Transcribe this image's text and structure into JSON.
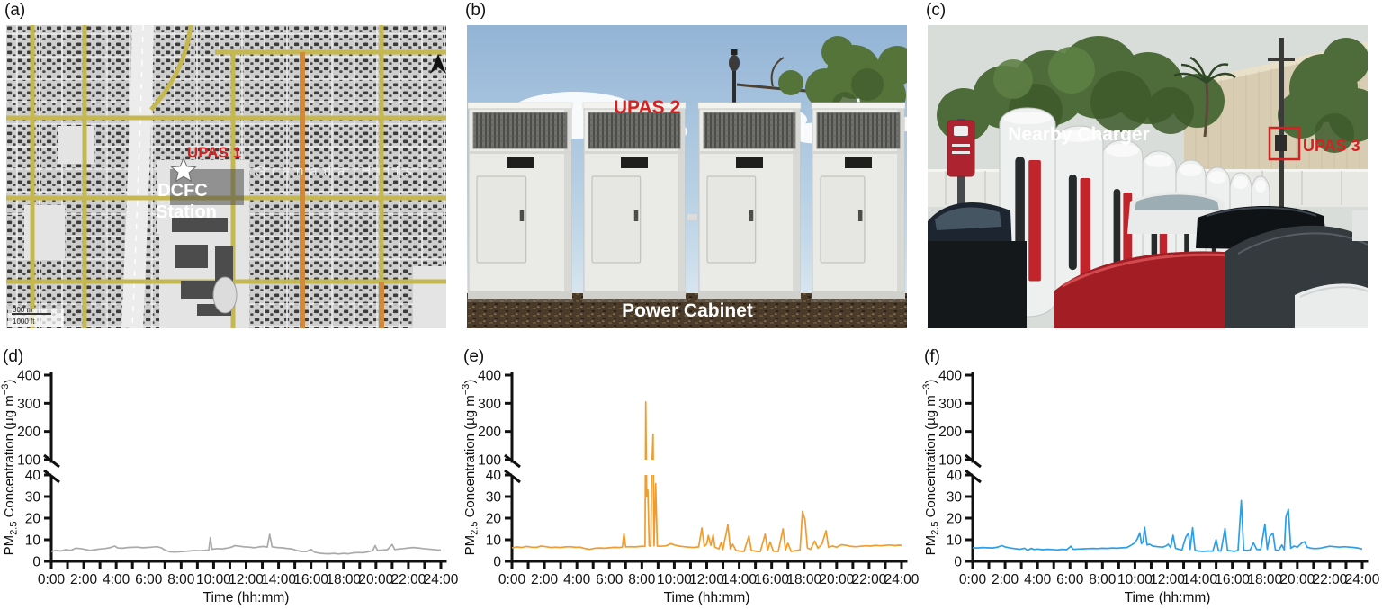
{
  "colors": {
    "annotation_red": "#D42222",
    "series_gray": "#AAAAAA",
    "series_orange": "#EF9D30",
    "series_blue": "#2D9FE8",
    "axis_black": "#111111"
  },
  "panels": {
    "a": {
      "label": "(a)",
      "annotations": {
        "upas": "UPAS 1",
        "station_line1": "DCFC",
        "station_line2": "Station",
        "area_name": "Granada Hills",
        "scale_metric": "300 m",
        "scale_imperial": "1000 ft"
      }
    },
    "b": {
      "label": "(b)",
      "annotations": {
        "upas": "UPAS 2",
        "caption": "Power Cabinet"
      }
    },
    "c": {
      "label": "(c)",
      "annotations": {
        "upas": "UPAS 3",
        "caption": "Nearby Charger"
      }
    }
  },
  "charts": {
    "axes": {
      "x": {
        "label": "Time (hh:mm)",
        "min": 0,
        "max": 24,
        "tick_step_hours": 1,
        "label_step_hours": 2,
        "tick_labels": [
          "0:00",
          "2:00",
          "4:00",
          "6:00",
          "8:00",
          "10:00",
          "12:00",
          "14:00",
          "16:00",
          "18:00",
          "20:00",
          "22:00",
          "24:00"
        ]
      },
      "y": {
        "label_parts": {
          "p1": "PM",
          "sub": "2.5",
          "p2": " Concentration (µg m",
          "sup": "−3",
          "p3": ")"
        },
        "lower": {
          "min": 0,
          "max": 40,
          "ticks": [
            0,
            10,
            20,
            30,
            40
          ]
        },
        "upper": {
          "min": 100,
          "max": 400,
          "ticks": [
            100,
            200,
            300,
            400
          ]
        },
        "broken": true
      }
    }
  },
  "chart_data": [
    {
      "panel_label": "(d)",
      "type": "line",
      "color": "#AAAAAA",
      "x_unit": "hours",
      "points": [
        [
          0,
          4.6
        ],
        [
          0.3,
          5.1
        ],
        [
          0.6,
          4.8
        ],
        [
          0.9,
          5.4
        ],
        [
          1.2,
          5.1
        ],
        [
          1.5,
          6.1
        ],
        [
          1.8,
          5.9
        ],
        [
          2.1,
          5.5
        ],
        [
          2.4,
          5.1
        ],
        [
          2.7,
          5.4
        ],
        [
          3,
          5.7
        ],
        [
          3.3,
          5.9
        ],
        [
          3.6,
          6.3
        ],
        [
          3.9,
          7.1
        ],
        [
          4.1,
          6.2
        ],
        [
          4.4,
          6.1
        ],
        [
          4.7,
          6.4
        ],
        [
          5,
          6.5
        ],
        [
          5.3,
          6.6
        ],
        [
          5.6,
          6.3
        ],
        [
          5.9,
          6.4
        ],
        [
          6.2,
          6.6
        ],
        [
          6.5,
          6.8
        ],
        [
          6.8,
          6.2
        ],
        [
          7,
          5.2
        ],
        [
          7.3,
          4.4
        ],
        [
          7.6,
          4.3
        ],
        [
          7.9,
          4.4
        ],
        [
          8.2,
          4.6
        ],
        [
          8.5,
          4.8
        ],
        [
          8.8,
          5
        ],
        [
          9.1,
          4.9
        ],
        [
          9.4,
          5.1
        ],
        [
          9.7,
          5.2
        ],
        [
          9.8,
          11
        ],
        [
          9.9,
          5.6
        ],
        [
          10.2,
          5.9
        ],
        [
          10.5,
          5.8
        ],
        [
          10.8,
          6.1
        ],
        [
          11.1,
          6.6
        ],
        [
          11.3,
          7.3
        ],
        [
          11.6,
          7
        ],
        [
          11.9,
          6.7
        ],
        [
          12.2,
          6.6
        ],
        [
          12.5,
          6.3
        ],
        [
          12.8,
          6.7
        ],
        [
          13.1,
          6.9
        ],
        [
          13.3,
          6.6
        ],
        [
          13.45,
          12.5
        ],
        [
          13.6,
          6.7
        ],
        [
          13.9,
          6.4
        ],
        [
          14.2,
          6.3
        ],
        [
          14.5,
          6
        ],
        [
          14.8,
          5.8
        ],
        [
          15.1,
          5.1
        ],
        [
          15.4,
          4.6
        ],
        [
          15.7,
          4.5
        ],
        [
          16,
          5.6
        ],
        [
          16.2,
          4.3
        ],
        [
          16.5,
          3.8
        ],
        [
          16.8,
          3.6
        ],
        [
          17.1,
          3.5
        ],
        [
          17.4,
          3.7
        ],
        [
          17.7,
          3.4
        ],
        [
          18,
          3.7
        ],
        [
          18.3,
          3.5
        ],
        [
          18.6,
          3.9
        ],
        [
          18.9,
          4.1
        ],
        [
          19.2,
          4
        ],
        [
          19.5,
          4.4
        ],
        [
          19.8,
          4.9
        ],
        [
          19.95,
          7.3
        ],
        [
          20.1,
          5.1
        ],
        [
          20.4,
          5.2
        ],
        [
          20.7,
          5.4
        ],
        [
          21,
          7.8
        ],
        [
          21.15,
          5.5
        ],
        [
          21.4,
          5.7
        ],
        [
          21.7,
          5.9
        ],
        [
          22,
          6.2
        ],
        [
          22.3,
          6.4
        ],
        [
          22.6,
          6.2
        ],
        [
          22.9,
          5.9
        ],
        [
          23.2,
          5.7
        ],
        [
          23.5,
          5.5
        ],
        [
          23.8,
          5.3
        ],
        [
          24,
          5.2
        ]
      ]
    },
    {
      "panel_label": "(e)",
      "type": "line",
      "color": "#EF9D30",
      "x_unit": "hours",
      "points": [
        [
          0,
          6.3
        ],
        [
          0.3,
          6.7
        ],
        [
          0.6,
          6.4
        ],
        [
          0.9,
          6.9
        ],
        [
          1.2,
          6.6
        ],
        [
          1.5,
          6.5
        ],
        [
          1.8,
          7.1
        ],
        [
          2.1,
          6.8
        ],
        [
          2.4,
          6.4
        ],
        [
          2.7,
          6.6
        ],
        [
          3,
          6.4
        ],
        [
          3.3,
          6.7
        ],
        [
          3.6,
          6.8
        ],
        [
          3.9,
          6.5
        ],
        [
          4.2,
          6.6
        ],
        [
          4.5,
          5.9
        ],
        [
          4.8,
          5.6
        ],
        [
          5.1,
          6.1
        ],
        [
          5.4,
          6.2
        ],
        [
          5.7,
          6.1
        ],
        [
          6,
          6.3
        ],
        [
          6.3,
          6.5
        ],
        [
          6.6,
          6.4
        ],
        [
          6.8,
          6.6
        ],
        [
          6.9,
          12.9
        ],
        [
          7,
          6.7
        ],
        [
          7.3,
          6.8
        ],
        [
          7.6,
          6.7
        ],
        [
          7.9,
          6.9
        ],
        [
          8.1,
          7
        ],
        [
          8.2,
          6.9
        ],
        [
          8.24,
          305
        ],
        [
          8.3,
          30
        ],
        [
          8.37,
          33
        ],
        [
          8.45,
          7.2
        ],
        [
          8.55,
          7
        ],
        [
          8.6,
          40
        ],
        [
          8.69,
          190
        ],
        [
          8.75,
          7.2
        ],
        [
          8.85,
          36
        ],
        [
          8.95,
          7.1
        ],
        [
          9.2,
          7
        ],
        [
          9.5,
          7.2
        ],
        [
          9.8,
          8.2
        ],
        [
          10,
          7.6
        ],
        [
          10.3,
          7.1
        ],
        [
          10.6,
          6.8
        ],
        [
          10.9,
          6.6
        ],
        [
          11.2,
          6.4
        ],
        [
          11.5,
          6.7
        ],
        [
          11.7,
          15.4
        ],
        [
          11.85,
          7
        ],
        [
          12,
          8
        ],
        [
          12.1,
          12
        ],
        [
          12.25,
          7.4
        ],
        [
          12.4,
          12.3
        ],
        [
          12.5,
          6.6
        ],
        [
          12.75,
          5.8
        ],
        [
          12.9,
          8.8
        ],
        [
          13,
          5.4
        ],
        [
          13.1,
          9.4
        ],
        [
          13.2,
          12.8
        ],
        [
          13.3,
          17
        ],
        [
          13.45,
          5.8
        ],
        [
          13.6,
          7.9
        ],
        [
          13.8,
          5.1
        ],
        [
          14,
          4.8
        ],
        [
          14.3,
          4.6
        ],
        [
          14.6,
          11.8
        ],
        [
          14.75,
          5
        ],
        [
          14.9,
          4.9
        ],
        [
          15.1,
          4.6
        ],
        [
          15.3,
          4.5
        ],
        [
          15.6,
          12.6
        ],
        [
          15.75,
          5.1
        ],
        [
          15.9,
          8.9
        ],
        [
          16.1,
          4.7
        ],
        [
          16.4,
          4.5
        ],
        [
          16.7,
          15.1
        ],
        [
          16.85,
          5.2
        ],
        [
          17,
          8.4
        ],
        [
          17.2,
          4.6
        ],
        [
          17.5,
          5
        ],
        [
          17.75,
          5.3
        ],
        [
          17.9,
          23.2
        ],
        [
          18.05,
          19.3
        ],
        [
          18.2,
          6.2
        ],
        [
          18.4,
          5.6
        ],
        [
          18.65,
          9.4
        ],
        [
          18.85,
          6.1
        ],
        [
          19.1,
          8.1
        ],
        [
          19.35,
          14.2
        ],
        [
          19.5,
          6.6
        ],
        [
          19.75,
          7.1
        ],
        [
          20,
          6.6
        ],
        [
          20.3,
          7.7
        ],
        [
          20.6,
          7.4
        ],
        [
          20.9,
          6.9
        ],
        [
          21.2,
          6.8
        ],
        [
          21.5,
          7
        ],
        [
          21.8,
          7.2
        ],
        [
          22.1,
          7.1
        ],
        [
          22.4,
          7.4
        ],
        [
          22.7,
          7.2
        ],
        [
          23,
          7.4
        ],
        [
          23.3,
          7.6
        ],
        [
          23.6,
          7.3
        ],
        [
          23.8,
          7.5
        ],
        [
          24,
          7.4
        ]
      ]
    },
    {
      "panel_label": "(f)",
      "type": "line",
      "color": "#2D9FE8",
      "x_unit": "hours",
      "points": [
        [
          0,
          6.3
        ],
        [
          0.3,
          6.2
        ],
        [
          0.6,
          6.4
        ],
        [
          0.9,
          6.3
        ],
        [
          1.2,
          6.2
        ],
        [
          1.5,
          6.5
        ],
        [
          1.8,
          7.3
        ],
        [
          2,
          6.7
        ],
        [
          2.3,
          6.2
        ],
        [
          2.6,
          5.9
        ],
        [
          2.9,
          5.6
        ],
        [
          3.2,
          6.1
        ],
        [
          3.4,
          5.1
        ],
        [
          3.6,
          6
        ],
        [
          3.8,
          5.5
        ],
        [
          4,
          5.7
        ],
        [
          4.3,
          5.4
        ],
        [
          4.6,
          5.6
        ],
        [
          4.9,
          5.5
        ],
        [
          5.2,
          5.3
        ],
        [
          5.5,
          5.6
        ],
        [
          5.8,
          5.4
        ],
        [
          6.05,
          7
        ],
        [
          6.2,
          5.6
        ],
        [
          6.5,
          5.7
        ],
        [
          6.8,
          5.8
        ],
        [
          7.1,
          5.9
        ],
        [
          7.4,
          6
        ],
        [
          7.7,
          5.9
        ],
        [
          8,
          6.1
        ],
        [
          8.3,
          6
        ],
        [
          8.6,
          6.2
        ],
        [
          8.9,
          6.1
        ],
        [
          9.2,
          6.3
        ],
        [
          9.5,
          6.4
        ],
        [
          9.75,
          7.4
        ],
        [
          10,
          8.6
        ],
        [
          10.15,
          10.4
        ],
        [
          10.3,
          13.2
        ],
        [
          10.4,
          8.2
        ],
        [
          10.5,
          9.1
        ],
        [
          10.6,
          15.8
        ],
        [
          10.75,
          7.6
        ],
        [
          10.9,
          7.9
        ],
        [
          11.1,
          7.1
        ],
        [
          11.4,
          6.8
        ],
        [
          11.7,
          6.6
        ],
        [
          11.9,
          7.1
        ],
        [
          12.05,
          7.9
        ],
        [
          12.2,
          6.4
        ],
        [
          12.35,
          12.1
        ],
        [
          12.5,
          6.1
        ],
        [
          12.7,
          5.6
        ],
        [
          12.9,
          5.3
        ],
        [
          13.05,
          9.2
        ],
        [
          13.15,
          11.4
        ],
        [
          13.3,
          13.1
        ],
        [
          13.4,
          5.6
        ],
        [
          13.55,
          15.6
        ],
        [
          13.7,
          5.1
        ],
        [
          13.9,
          4.8
        ],
        [
          14.2,
          4.6
        ],
        [
          14.5,
          4.8
        ],
        [
          14.8,
          4.7
        ],
        [
          15,
          10.1
        ],
        [
          15.15,
          4.9
        ],
        [
          15.3,
          4.7
        ],
        [
          15.55,
          15.2
        ],
        [
          15.7,
          5.1
        ],
        [
          15.9,
          4.9
        ],
        [
          16.1,
          4.6
        ],
        [
          16.35,
          5.1
        ],
        [
          16.55,
          28.2
        ],
        [
          16.7,
          5.3
        ],
        [
          16.9,
          5.1
        ],
        [
          17.1,
          5.3
        ],
        [
          17.3,
          8.6
        ],
        [
          17.5,
          5.6
        ],
        [
          17.75,
          5.4
        ],
        [
          18,
          17.2
        ],
        [
          18.15,
          5.6
        ],
        [
          18.3,
          11.6
        ],
        [
          18.5,
          13.1
        ],
        [
          18.65,
          5.3
        ],
        [
          18.85,
          5.1
        ],
        [
          19.05,
          7.6
        ],
        [
          19.2,
          5.3
        ],
        [
          19.3,
          20.6
        ],
        [
          19.45,
          24.1
        ],
        [
          19.6,
          6.1
        ],
        [
          19.8,
          7.1
        ],
        [
          20,
          6.6
        ],
        [
          20.3,
          8.6
        ],
        [
          20.45,
          9.1
        ],
        [
          20.6,
          6.6
        ],
        [
          20.85,
          6.1
        ],
        [
          21.1,
          5.9
        ],
        [
          21.4,
          6.1
        ],
        [
          21.7,
          6.6
        ],
        [
          22,
          7
        ],
        [
          22.3,
          6.8
        ],
        [
          22.6,
          6.6
        ],
        [
          22.9,
          6.8
        ],
        [
          23.2,
          6.6
        ],
        [
          23.5,
          6.4
        ],
        [
          23.8,
          6.1
        ],
        [
          24,
          5.7
        ]
      ]
    }
  ]
}
